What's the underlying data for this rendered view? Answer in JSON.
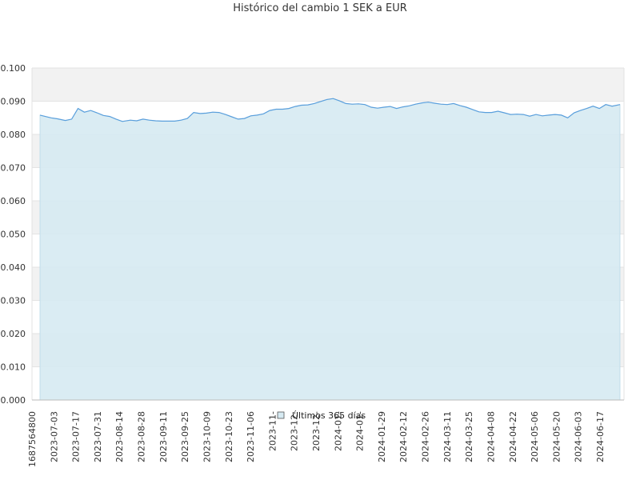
{
  "chart_data": {
    "type": "area",
    "title": "Histórico del cambio 1 SEK a EUR",
    "xlabel": "",
    "ylabel": "",
    "ylim": [
      0,
      0.1
    ],
    "yticks": [
      "0.000",
      "0.010",
      "0.020",
      "0.030",
      "0.040",
      "0.050",
      "0.060",
      "0.070",
      "0.080",
      "0.090",
      "0.100"
    ],
    "xticks": [
      "1687564800",
      "2023-07-03",
      "2023-07-17",
      "2023-07-31",
      "2023-08-14",
      "2023-08-28",
      "2023-09-11",
      "2023-09-25",
      "2023-10-09",
      "2023-10-23",
      "2023-11-06",
      "2023-11-",
      "2023-12-",
      "2023-12-",
      "2024-01-",
      "2024-01-",
      "2024-01-29",
      "2024-02-12",
      "2024-02-26",
      "2024-03-11",
      "2024-03-25",
      "2024-04-08",
      "2024-04-22",
      "2024-05-06",
      "2024-05-20",
      "2024-06-03",
      "2024-06-17"
    ],
    "xrange": [
      "2023-06-24",
      "2024-06-24"
    ],
    "grid": true,
    "legend": "bottom-center",
    "colors": {
      "line": "#5a9fdc",
      "fill": "#d6eaf2",
      "band": "#f2f2f2"
    },
    "series": [
      {
        "name": "Últimos 365 días",
        "x": [
          "2023-06-24",
          "2023-07-01",
          "2023-07-05",
          "2023-07-10",
          "2023-07-14",
          "2023-07-18",
          "2023-07-22",
          "2023-07-26",
          "2023-07-30",
          "2023-08-03",
          "2023-08-07",
          "2023-08-11",
          "2023-08-15",
          "2023-08-20",
          "2023-08-24",
          "2023-08-28",
          "2023-09-01",
          "2023-09-05",
          "2023-09-09",
          "2023-09-13",
          "2023-09-17",
          "2023-09-21",
          "2023-09-25",
          "2023-09-29",
          "2023-10-03",
          "2023-10-07",
          "2023-10-11",
          "2023-10-15",
          "2023-10-19",
          "2023-10-23",
          "2023-10-27",
          "2023-10-31",
          "2023-11-04",
          "2023-11-08",
          "2023-11-12",
          "2023-11-16",
          "2023-11-20",
          "2023-11-24",
          "2023-11-28",
          "2023-12-02",
          "2023-12-06",
          "2023-12-10",
          "2023-12-14",
          "2023-12-18",
          "2023-12-22",
          "2023-12-26",
          "2023-12-30",
          "2024-01-03",
          "2024-01-07",
          "2024-01-11",
          "2024-01-15",
          "2024-01-19",
          "2024-01-23",
          "2024-01-27",
          "2024-01-31",
          "2024-02-04",
          "2024-02-08",
          "2024-02-12",
          "2024-02-16",
          "2024-02-20",
          "2024-02-24",
          "2024-02-28",
          "2024-03-03",
          "2024-03-07",
          "2024-03-11",
          "2024-03-15",
          "2024-03-19",
          "2024-03-23",
          "2024-03-27",
          "2024-03-31",
          "2024-04-04",
          "2024-04-08",
          "2024-04-12",
          "2024-04-16",
          "2024-04-20",
          "2024-04-24",
          "2024-04-28",
          "2024-05-02",
          "2024-05-06",
          "2024-05-10",
          "2024-05-14",
          "2024-05-18",
          "2024-05-22",
          "2024-05-26",
          "2024-05-30",
          "2024-06-03",
          "2024-06-07",
          "2024-06-11",
          "2024-06-15",
          "2024-06-19",
          "2024-06-24"
        ],
        "values": [
          0.0858,
          0.085,
          0.0847,
          0.0842,
          0.0846,
          0.0878,
          0.0867,
          0.0872,
          0.0865,
          0.0857,
          0.0854,
          0.0846,
          0.0839,
          0.0843,
          0.0841,
          0.0846,
          0.0843,
          0.0841,
          0.084,
          0.084,
          0.084,
          0.0843,
          0.0848,
          0.0866,
          0.0863,
          0.0864,
          0.0867,
          0.0866,
          0.086,
          0.0853,
          0.0846,
          0.0848,
          0.0856,
          0.0858,
          0.0862,
          0.0872,
          0.0876,
          0.0876,
          0.0878,
          0.0884,
          0.0888,
          0.0889,
          0.0893,
          0.0899,
          0.0905,
          0.0908,
          0.0901,
          0.0893,
          0.0891,
          0.0892,
          0.089,
          0.0882,
          0.0879,
          0.0882,
          0.0884,
          0.0878,
          0.0883,
          0.0886,
          0.0891,
          0.0895,
          0.0897,
          0.0894,
          0.0891,
          0.089,
          0.0893,
          0.0887,
          0.0882,
          0.0875,
          0.0868,
          0.0866,
          0.0866,
          0.087,
          0.0865,
          0.086,
          0.0861,
          0.086,
          0.0855,
          0.086,
          0.0856,
          0.0858,
          0.086,
          0.0858,
          0.085,
          0.0865,
          0.0872,
          0.0878,
          0.0885,
          0.0878,
          0.089,
          0.0885,
          0.089
        ]
      }
    ]
  }
}
